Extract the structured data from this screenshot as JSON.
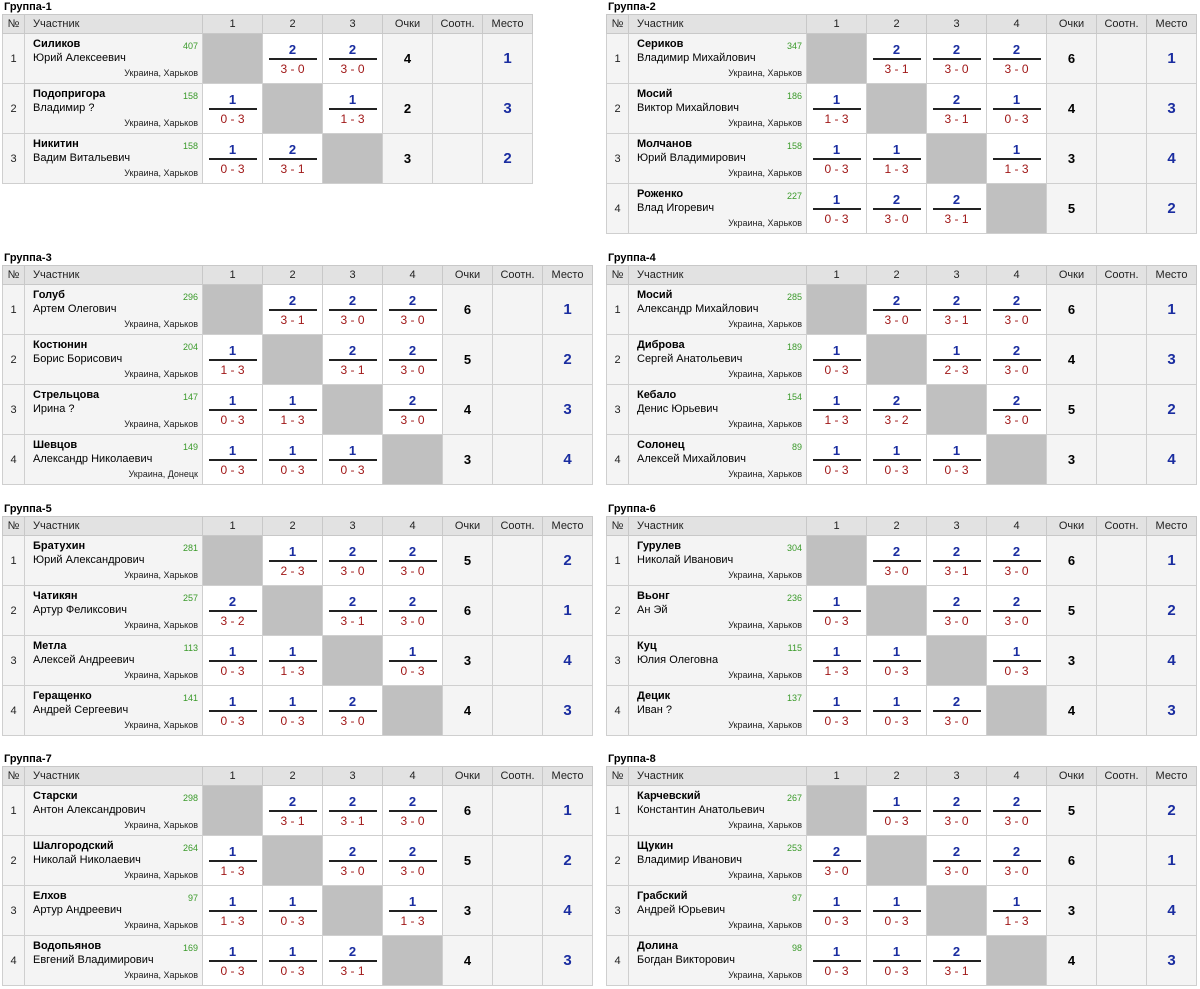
{
  "headers": {
    "num": "№",
    "participant": "Участник",
    "points": "Очки",
    "ratio": "Соотн.",
    "place": "Место"
  },
  "groups": [
    {
      "title": "Группа-1",
      "n": 3,
      "players": [
        {
          "name": "Силиков",
          "first": "Юрий Алексеевич",
          "rating": "407",
          "city": "Украина, Харьков",
          "res": [
            null,
            [
              "2",
              "3 - 0"
            ],
            [
              "2",
              "3 - 0"
            ]
          ],
          "points": "4",
          "ratio": "",
          "place": "1"
        },
        {
          "name": "Подопригора",
          "first": "Владимир ?",
          "rating": "158",
          "city": "Украина, Харьков",
          "res": [
            [
              "1",
              "0 - 3"
            ],
            null,
            [
              "1",
              "1 - 3"
            ]
          ],
          "points": "2",
          "ratio": "",
          "place": "3"
        },
        {
          "name": "Никитин",
          "first": "Вадим Витальевич",
          "rating": "158",
          "city": "Украина, Харьков",
          "res": [
            [
              "1",
              "0 - 3"
            ],
            [
              "2",
              "3 - 1"
            ],
            null
          ],
          "points": "3",
          "ratio": "",
          "place": "2"
        }
      ]
    },
    {
      "title": "Группа-2",
      "n": 4,
      "players": [
        {
          "name": "Сериков",
          "first": "Владимир Михайлович",
          "rating": "347",
          "city": "Украина, Харьков",
          "res": [
            null,
            [
              "2",
              "3 - 1"
            ],
            [
              "2",
              "3 - 0"
            ],
            [
              "2",
              "3 - 0"
            ]
          ],
          "points": "6",
          "ratio": "",
          "place": "1"
        },
        {
          "name": "Мосий",
          "first": "Виктор Михайлович",
          "rating": "186",
          "city": "Украина, Харьков",
          "res": [
            [
              "1",
              "1 - 3"
            ],
            null,
            [
              "2",
              "3 - 1"
            ],
            [
              "1",
              "0 - 3"
            ]
          ],
          "points": "4",
          "ratio": "",
          "place": "3"
        },
        {
          "name": "Молчанов",
          "first": "Юрий Владимирович",
          "rating": "158",
          "city": "Украина, Харьков",
          "res": [
            [
              "1",
              "0 - 3"
            ],
            [
              "1",
              "1 - 3"
            ],
            null,
            [
              "1",
              "1 - 3"
            ]
          ],
          "points": "3",
          "ratio": "",
          "place": "4"
        },
        {
          "name": "Роженко",
          "first": "Влад Игоревич",
          "rating": "227",
          "city": "Украина, Харьков",
          "res": [
            [
              "1",
              "0 - 3"
            ],
            [
              "2",
              "3 - 0"
            ],
            [
              "2",
              "3 - 1"
            ],
            null
          ],
          "points": "5",
          "ratio": "",
          "place": "2"
        }
      ]
    },
    {
      "title": "Группа-3",
      "n": 4,
      "players": [
        {
          "name": "Голуб",
          "first": "Артем Олегович",
          "rating": "296",
          "city": "Украина, Харьков",
          "res": [
            null,
            [
              "2",
              "3 - 1"
            ],
            [
              "2",
              "3 - 0"
            ],
            [
              "2",
              "3 - 0"
            ]
          ],
          "points": "6",
          "ratio": "",
          "place": "1"
        },
        {
          "name": "Костюнин",
          "first": "Борис Борисович",
          "rating": "204",
          "city": "Украина, Харьков",
          "res": [
            [
              "1",
              "1 - 3"
            ],
            null,
            [
              "2",
              "3 - 1"
            ],
            [
              "2",
              "3 - 0"
            ]
          ],
          "points": "5",
          "ratio": "",
          "place": "2"
        },
        {
          "name": "Стрельцова",
          "first": "Ирина ?",
          "rating": "147",
          "city": "Украина, Харьков",
          "res": [
            [
              "1",
              "0 - 3"
            ],
            [
              "1",
              "1 - 3"
            ],
            null,
            [
              "2",
              "3 - 0"
            ]
          ],
          "points": "4",
          "ratio": "",
          "place": "3"
        },
        {
          "name": "Шевцов",
          "first": "Александр Николаевич",
          "rating": "149",
          "city": "Украина, Донецк",
          "res": [
            [
              "1",
              "0 - 3"
            ],
            [
              "1",
              "0 - 3"
            ],
            [
              "1",
              "0 - 3"
            ],
            null
          ],
          "points": "3",
          "ratio": "",
          "place": "4"
        }
      ]
    },
    {
      "title": "Группа-4",
      "n": 4,
      "players": [
        {
          "name": "Мосий",
          "first": "Александр Михайлович",
          "rating": "285",
          "city": "Украина, Харьков",
          "res": [
            null,
            [
              "2",
              "3 - 0"
            ],
            [
              "2",
              "3 - 1"
            ],
            [
              "2",
              "3 - 0"
            ]
          ],
          "points": "6",
          "ratio": "",
          "place": "1"
        },
        {
          "name": "Диброва",
          "first": "Сергей Анатольевич",
          "rating": "189",
          "city": "Украина, Харьков",
          "res": [
            [
              "1",
              "0 - 3"
            ],
            null,
            [
              "1",
              "2 - 3"
            ],
            [
              "2",
              "3 - 0"
            ]
          ],
          "points": "4",
          "ratio": "",
          "place": "3"
        },
        {
          "name": "Кебало",
          "first": "Денис Юрьевич",
          "rating": "154",
          "city": "Украина, Харьков",
          "res": [
            [
              "1",
              "1 - 3"
            ],
            [
              "2",
              "3 - 2"
            ],
            null,
            [
              "2",
              "3 - 0"
            ]
          ],
          "points": "5",
          "ratio": "",
          "place": "2"
        },
        {
          "name": "Солонец",
          "first": "Алексей Михайлович",
          "rating": "89",
          "city": "Украина, Харьков",
          "res": [
            [
              "1",
              "0 - 3"
            ],
            [
              "1",
              "0 - 3"
            ],
            [
              "1",
              "0 - 3"
            ],
            null
          ],
          "points": "3",
          "ratio": "",
          "place": "4"
        }
      ]
    },
    {
      "title": "Группа-5",
      "n": 4,
      "players": [
        {
          "name": "Братухин",
          "first": "Юрий Александрович",
          "rating": "281",
          "city": "Украина, Харьков",
          "res": [
            null,
            [
              "1",
              "2 - 3"
            ],
            [
              "2",
              "3 - 0"
            ],
            [
              "2",
              "3 - 0"
            ]
          ],
          "points": "5",
          "ratio": "",
          "place": "2"
        },
        {
          "name": "Чатикян",
          "first": "Артур Феликсович",
          "rating": "257",
          "city": "Украина, Харьков",
          "res": [
            [
              "2",
              "3 - 2"
            ],
            null,
            [
              "2",
              "3 - 1"
            ],
            [
              "2",
              "3 - 0"
            ]
          ],
          "points": "6",
          "ratio": "",
          "place": "1"
        },
        {
          "name": "Метла",
          "first": "Алексей Андреевич",
          "rating": "113",
          "city": "Украина, Харьков",
          "res": [
            [
              "1",
              "0 - 3"
            ],
            [
              "1",
              "1 - 3"
            ],
            null,
            [
              "1",
              "0 - 3"
            ]
          ],
          "points": "3",
          "ratio": "",
          "place": "4"
        },
        {
          "name": "Геращенко",
          "first": "Андрей Сергеевич",
          "rating": "141",
          "city": "Украина, Харьков",
          "res": [
            [
              "1",
              "0 - 3"
            ],
            [
              "1",
              "0 - 3"
            ],
            [
              "2",
              "3 - 0"
            ],
            null
          ],
          "points": "4",
          "ratio": "",
          "place": "3"
        }
      ]
    },
    {
      "title": "Группа-6",
      "n": 4,
      "players": [
        {
          "name": "Гурулев",
          "first": "Николай Иванович",
          "rating": "304",
          "city": "Украина, Харьков",
          "res": [
            null,
            [
              "2",
              "3 - 0"
            ],
            [
              "2",
              "3 - 1"
            ],
            [
              "2",
              "3 - 0"
            ]
          ],
          "points": "6",
          "ratio": "",
          "place": "1"
        },
        {
          "name": "Вьонг",
          "first": "Ан Эй",
          "rating": "236",
          "city": "Украина, Харьков",
          "res": [
            [
              "1",
              "0 - 3"
            ],
            null,
            [
              "2",
              "3 - 0"
            ],
            [
              "2",
              "3 - 0"
            ]
          ],
          "points": "5",
          "ratio": "",
          "place": "2"
        },
        {
          "name": "Куц",
          "first": "Юлия Олеговна",
          "rating": "115",
          "city": "Украина, Харьков",
          "res": [
            [
              "1",
              "1 - 3"
            ],
            [
              "1",
              "0 - 3"
            ],
            null,
            [
              "1",
              "0 - 3"
            ]
          ],
          "points": "3",
          "ratio": "",
          "place": "4"
        },
        {
          "name": "Децик",
          "first": "Иван ?",
          "rating": "137",
          "city": "Украина, Харьков",
          "res": [
            [
              "1",
              "0 - 3"
            ],
            [
              "1",
              "0 - 3"
            ],
            [
              "2",
              "3 - 0"
            ],
            null
          ],
          "points": "4",
          "ratio": "",
          "place": "3"
        }
      ]
    },
    {
      "title": "Группа-7",
      "n": 4,
      "players": [
        {
          "name": "Старски",
          "first": "Антон Александрович",
          "rating": "298",
          "city": "Украина, Харьков",
          "res": [
            null,
            [
              "2",
              "3 - 1"
            ],
            [
              "2",
              "3 - 1"
            ],
            [
              "2",
              "3 - 0"
            ]
          ],
          "points": "6",
          "ratio": "",
          "place": "1"
        },
        {
          "name": "Шалгородский",
          "first": "Николай Николаевич",
          "rating": "264",
          "city": "Украина, Харьков",
          "res": [
            [
              "1",
              "1 - 3"
            ],
            null,
            [
              "2",
              "3 - 0"
            ],
            [
              "2",
              "3 - 0"
            ]
          ],
          "points": "5",
          "ratio": "",
          "place": "2"
        },
        {
          "name": "Елхов",
          "first": "Артур Андреевич",
          "rating": "97",
          "city": "Украина, Харьков",
          "res": [
            [
              "1",
              "1 - 3"
            ],
            [
              "1",
              "0 - 3"
            ],
            null,
            [
              "1",
              "1 - 3"
            ]
          ],
          "points": "3",
          "ratio": "",
          "place": "4"
        },
        {
          "name": "Водопьянов",
          "first": "Евгений Владимирович",
          "rating": "169",
          "city": "Украина, Харьков",
          "res": [
            [
              "1",
              "0 - 3"
            ],
            [
              "1",
              "0 - 3"
            ],
            [
              "2",
              "3 - 1"
            ],
            null
          ],
          "points": "4",
          "ratio": "",
          "place": "3"
        }
      ]
    },
    {
      "title": "Группа-8",
      "n": 4,
      "players": [
        {
          "name": "Карчевский",
          "first": "Константин Анатольевич",
          "rating": "267",
          "city": "Украина, Харьков",
          "res": [
            null,
            [
              "1",
              "0 - 3"
            ],
            [
              "2",
              "3 - 0"
            ],
            [
              "2",
              "3 - 0"
            ]
          ],
          "points": "5",
          "ratio": "",
          "place": "2"
        },
        {
          "name": "Щукин",
          "first": "Владимир Иванович",
          "rating": "253",
          "city": "Украина, Харьков",
          "res": [
            [
              "2",
              "3 - 0"
            ],
            null,
            [
              "2",
              "3 - 0"
            ],
            [
              "2",
              "3 - 0"
            ]
          ],
          "points": "6",
          "ratio": "",
          "place": "1"
        },
        {
          "name": "Грабский",
          "first": "Андрей Юрьевич",
          "rating": "97",
          "city": "Украина, Харьков",
          "res": [
            [
              "1",
              "0 - 3"
            ],
            [
              "1",
              "0 - 3"
            ],
            null,
            [
              "1",
              "1 - 3"
            ]
          ],
          "points": "3",
          "ratio": "",
          "place": "4"
        },
        {
          "name": "Долина",
          "first": "Богдан Викторович",
          "rating": "98",
          "city": "Украина, Харьков",
          "res": [
            [
              "1",
              "0 - 3"
            ],
            [
              "1",
              "0 - 3"
            ],
            [
              "2",
              "3 - 1"
            ],
            null
          ],
          "points": "4",
          "ratio": "",
          "place": "3"
        }
      ]
    }
  ]
}
